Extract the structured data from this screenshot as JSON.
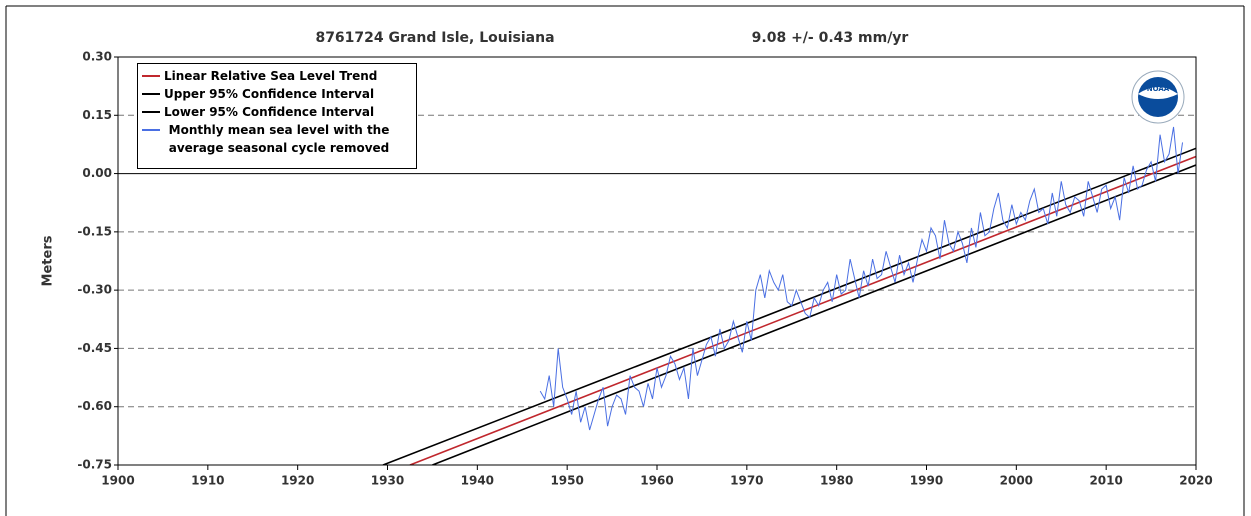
{
  "chart_data": {
    "type": "line",
    "title": "8761724 Grand Isle, Louisiana",
    "subtitle": "9.08 +/-  0.43 mm/yr",
    "y_label": "Meters",
    "xlim": [
      1900,
      2020
    ],
    "xticks": [
      1900,
      1910,
      1920,
      1930,
      1940,
      1950,
      1960,
      1970,
      1980,
      1990,
      2000,
      2010,
      2020
    ],
    "ylim": [
      -0.75,
      0.3
    ],
    "yticks": [
      {
        "value": 0.3,
        "label": "0.30"
      },
      0.15,
      {
        "value": 0,
        "label": "0.00"
      },
      -0.15,
      {
        "value": -0.3,
        "label": "-0.30"
      },
      -0.45,
      {
        "value": -0.6,
        "label": "-0.60"
      },
      -0.75
    ],
    "grid": true,
    "zero_line": true,
    "legend": "upper left",
    "series": [
      {
        "name": "Linear Relative Sea Level Trend",
        "color": "#c0272d",
        "x": [
          1932.5,
          2020
        ],
        "values": [
          -0.75,
          0.044
        ]
      },
      {
        "name": "Upper 95% Confidence Interval",
        "color": "#000000",
        "x": [
          1929.5,
          2020
        ],
        "values": [
          -0.75,
          0.065
        ]
      },
      {
        "name": "Lower 95% Confidence Interval",
        "color": "#000000",
        "x": [
          1935,
          2020
        ],
        "values": [
          -0.75,
          0.022
        ]
      },
      {
        "name": "Monthly mean sea level with the average seasonal cycle removed",
        "color": "#4a6fe3",
        "x": [
          1947,
          1947.5,
          1948,
          1948.5,
          1949,
          1949.5,
          1950,
          1950.5,
          1951,
          1951.5,
          1952,
          1952.5,
          1953,
          1953.5,
          1954,
          1954.5,
          1955,
          1955.5,
          1956,
          1956.5,
          1957,
          1957.5,
          1958,
          1958.5,
          1959,
          1959.5,
          1960,
          1960.5,
          1961,
          1961.5,
          1962,
          1962.5,
          1963,
          1963.5,
          1964,
          1964.5,
          1965,
          1965.5,
          1966,
          1966.5,
          1967,
          1967.5,
          1968,
          1968.5,
          1969,
          1969.5,
          1970,
          1970.5,
          1971,
          1971.5,
          1972,
          1972.5,
          1973,
          1973.5,
          1974,
          1974.5,
          1975,
          1975.5,
          1976,
          1976.5,
          1977,
          1977.5,
          1978,
          1978.5,
          1979,
          1979.5,
          1980,
          1980.5,
          1981,
          1981.5,
          1982,
          1982.5,
          1983,
          1983.5,
          1984,
          1984.5,
          1985,
          1985.5,
          1986,
          1986.5,
          1987,
          1987.5,
          1988,
          1988.5,
          1989,
          1989.5,
          1990,
          1990.5,
          1991,
          1991.5,
          1992,
          1992.5,
          1993,
          1993.5,
          1994,
          1994.5,
          1995,
          1995.5,
          1996,
          1996.5,
          1997,
          1997.5,
          1998,
          1998.5,
          1999,
          1999.5,
          2000,
          2000.5,
          2001,
          2001.5,
          2002,
          2002.5,
          2003,
          2003.5,
          2004,
          2004.5,
          2005,
          2005.5,
          2006,
          2006.5,
          2007,
          2007.5,
          2008,
          2008.5,
          2009,
          2009.5,
          2010,
          2010.5,
          2011,
          2011.5,
          2012,
          2012.5,
          2013,
          2013.5,
          2014,
          2014.5,
          2015,
          2015.5,
          2016,
          2016.5,
          2017,
          2017.5,
          2018,
          2018.5
        ],
        "values": [
          -0.56,
          -0.58,
          -0.52,
          -0.6,
          -0.45,
          -0.55,
          -0.58,
          -0.62,
          -0.56,
          -0.64,
          -0.6,
          -0.66,
          -0.62,
          -0.58,
          -0.55,
          -0.65,
          -0.6,
          -0.57,
          -0.58,
          -0.62,
          -0.52,
          -0.55,
          -0.56,
          -0.6,
          -0.54,
          -0.58,
          -0.5,
          -0.55,
          -0.52,
          -0.47,
          -0.49,
          -0.53,
          -0.5,
          -0.58,
          -0.45,
          -0.52,
          -0.48,
          -0.44,
          -0.42,
          -0.47,
          -0.4,
          -0.45,
          -0.43,
          -0.38,
          -0.42,
          -0.46,
          -0.38,
          -0.43,
          -0.3,
          -0.26,
          -0.32,
          -0.25,
          -0.28,
          -0.3,
          -0.26,
          -0.33,
          -0.34,
          -0.3,
          -0.33,
          -0.36,
          -0.37,
          -0.32,
          -0.34,
          -0.3,
          -0.28,
          -0.33,
          -0.26,
          -0.31,
          -0.3,
          -0.22,
          -0.27,
          -0.32,
          -0.25,
          -0.29,
          -0.22,
          -0.27,
          -0.26,
          -0.2,
          -0.24,
          -0.28,
          -0.21,
          -0.26,
          -0.23,
          -0.28,
          -0.22,
          -0.17,
          -0.2,
          -0.14,
          -0.16,
          -0.22,
          -0.12,
          -0.18,
          -0.2,
          -0.15,
          -0.18,
          -0.23,
          -0.14,
          -0.19,
          -0.1,
          -0.16,
          -0.15,
          -0.09,
          -0.05,
          -0.12,
          -0.14,
          -0.08,
          -0.13,
          -0.1,
          -0.12,
          -0.07,
          -0.04,
          -0.1,
          -0.09,
          -0.13,
          -0.05,
          -0.11,
          -0.02,
          -0.08,
          -0.1,
          -0.06,
          -0.07,
          -0.11,
          -0.02,
          -0.06,
          -0.1,
          -0.04,
          -0.03,
          -0.09,
          -0.06,
          -0.12,
          -0.01,
          -0.05,
          0.02,
          -0.04,
          -0.03,
          0.01,
          0.03,
          -0.02,
          0.1,
          0.03,
          0.05,
          0.12,
          0,
          0.08
        ]
      }
    ]
  }
}
